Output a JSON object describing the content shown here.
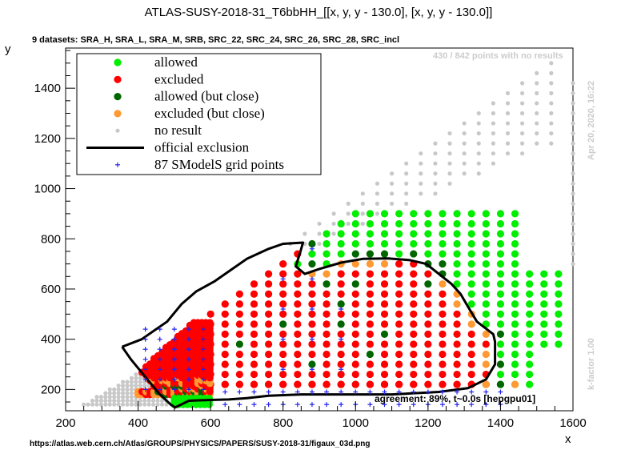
{
  "title": "ATLAS-SUSY-2018-31_T6bbHH_[[x, y, y - 130.0], [x, y, y - 130.0]]",
  "datasets_label": "9 datasets: SRA_H, SRA_L, SRA_M, SRB, SRC_22, SRC_24, SRC_26, SRC_28, SRC_incl",
  "no_result_label": "430 / 842 points with no results",
  "date_label": "Apr 20, 2020, 16:22",
  "kfactor_label": "k-factor 1.00",
  "agreement_label": "agreement: 89%, t~0.0s [hepgpu01]",
  "url_label": "https://atlas.web.cern.ch/Atlas/GROUPS/PHYSICS/PAPERS/SUSY-2018-31/figaux_03d.png",
  "colors": {
    "allowed": "#00ee00",
    "excluded": "#ff0000",
    "allowed_close": "#006600",
    "excluded_close": "#ff9933",
    "no_result": "#c8c8c8",
    "grid_point": "#2222ee",
    "exclusion_line": "#000000"
  },
  "chart_data": {
    "type": "scatter",
    "xlabel": "x",
    "ylabel": "y",
    "xlim": [
      200,
      1600
    ],
    "ylim": [
      115,
      1560
    ],
    "xticks": [
      200,
      400,
      600,
      800,
      1000,
      1200,
      1400,
      1600
    ],
    "yticks": [
      200,
      400,
      600,
      800,
      1000,
      1200,
      1400
    ],
    "legend_position": "top-left",
    "legend": [
      {
        "key": "allowed",
        "label": "allowed",
        "marker": "dot"
      },
      {
        "key": "excluded",
        "label": "excluded",
        "marker": "dot"
      },
      {
        "key": "allowed_close",
        "label": "allowed (but close)",
        "marker": "dot"
      },
      {
        "key": "excluded_close",
        "label": "excluded (but close)",
        "marker": "dot"
      },
      {
        "key": "no_result",
        "label": "no result",
        "marker": "smalldot"
      },
      {
        "key": "exclusion_line",
        "label": "official exclusion",
        "marker": "line"
      },
      {
        "key": "grid_point",
        "label": "87 SModelS grid points",
        "marker": "plus"
      }
    ],
    "official_exclusion": [
      [
        356,
        370
      ],
      [
        410,
        400
      ],
      [
        440,
        430
      ],
      [
        480,
        470
      ],
      [
        520,
        540
      ],
      [
        560,
        590
      ],
      [
        610,
        630
      ],
      [
        660,
        680
      ],
      [
        700,
        720
      ],
      [
        760,
        760
      ],
      [
        800,
        780
      ],
      [
        855,
        785
      ],
      [
        848,
        750
      ],
      [
        835,
        690
      ],
      [
        860,
        660
      ],
      [
        900,
        680
      ],
      [
        960,
        705
      ],
      [
        1020,
        720
      ],
      [
        1090,
        722
      ],
      [
        1150,
        715
      ],
      [
        1195,
        700
      ],
      [
        1230,
        660
      ],
      [
        1265,
        620
      ],
      [
        1290,
        580
      ],
      [
        1310,
        530
      ],
      [
        1335,
        470
      ],
      [
        1380,
        420
      ],
      [
        1385,
        390
      ],
      [
        1385,
        300
      ],
      [
        1360,
        240
      ],
      [
        1310,
        205
      ],
      [
        1230,
        190
      ],
      [
        1100,
        180
      ],
      [
        950,
        180
      ],
      [
        850,
        180
      ],
      [
        760,
        175
      ],
      [
        700,
        165
      ],
      [
        650,
        160
      ],
      [
        600,
        158
      ],
      [
        540,
        155
      ],
      [
        502,
        128
      ],
      [
        490,
        140
      ],
      [
        460,
        180
      ],
      [
        420,
        250
      ],
      [
        380,
        320
      ],
      [
        356,
        370
      ]
    ],
    "regions": [
      {
        "status": "no_result",
        "x_min": 250,
        "x_max": 480,
        "y_min": 140,
        "y_max": 330,
        "edge": "triangular_lower_left"
      },
      {
        "status": "no_result",
        "x_min": 460,
        "x_max": 1560,
        "y_min": 760,
        "y_max": 1500,
        "edge": "above_diagonal"
      },
      {
        "status": "excluded",
        "region": "inside official exclusion (x 356-1380)"
      },
      {
        "status": "allowed",
        "region": "outside official exclusion up to x 1560"
      }
    ],
    "grid_points_count": 87
  }
}
